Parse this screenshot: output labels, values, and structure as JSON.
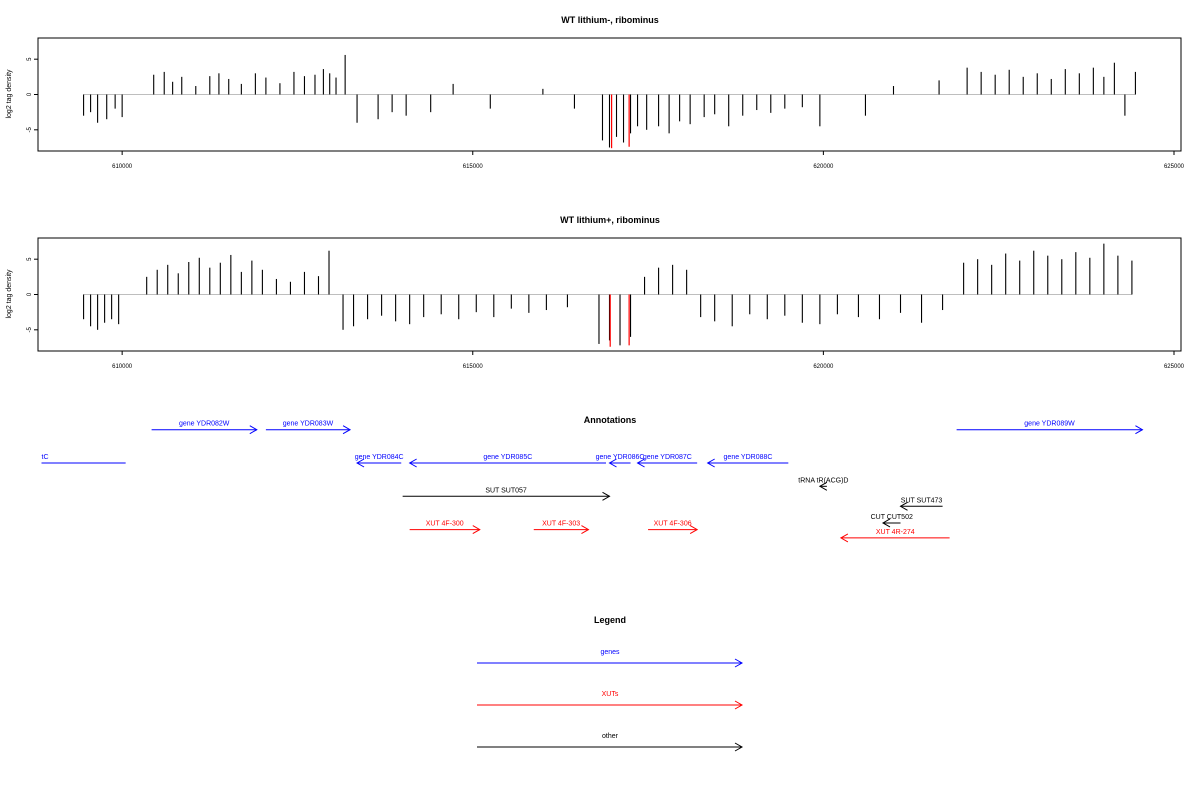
{
  "colors": {
    "gene": "#0000ff",
    "xut": "#ff0000",
    "other": "#000000",
    "bar": "#000000",
    "highlight": "#ff0000",
    "baseline": "#bebebe"
  },
  "chart_data": [
    {
      "type": "bar",
      "title": "WT lithium-, ribominus",
      "ylabel": "log2 tag density",
      "xlim": [
        608800,
        625100
      ],
      "ylim": [
        -8,
        8
      ],
      "x_ticks": [
        610000,
        615000,
        620000,
        625000
      ],
      "x_tick_labels": [
        "610000",
        "615000",
        "620000",
        "625000"
      ],
      "y_ticks": [
        -5,
        0,
        5
      ],
      "y_tick_labels": [
        "-5",
        "0",
        "5"
      ],
      "baseline": 0,
      "x": [
        609450,
        609550,
        609650,
        609780,
        609900,
        610000,
        610450,
        610600,
        610720,
        610850,
        611050,
        611250,
        611380,
        611520,
        611700,
        611900,
        612050,
        612250,
        612450,
        612600,
        612750,
        612870,
        612960,
        613050,
        613180,
        613350,
        613650,
        613850,
        614050,
        614400,
        614720,
        615250,
        616000,
        616450,
        616850,
        616950,
        617050,
        617150,
        617250,
        617350,
        617480,
        617650,
        617800,
        617950,
        618100,
        618300,
        618450,
        618650,
        618850,
        619050,
        619250,
        619450,
        619700,
        619950,
        620600,
        621000,
        621650,
        622050,
        622250,
        622450,
        622650,
        622850,
        623050,
        623250,
        623450,
        623650,
        623850,
        624000,
        624150,
        624300,
        624450
      ],
      "values": [
        -3.0,
        -2.5,
        -4.0,
        -3.5,
        -2.0,
        -3.2,
        2.8,
        3.2,
        1.8,
        2.5,
        1.2,
        2.6,
        3.0,
        2.2,
        1.5,
        3.0,
        2.4,
        1.6,
        3.2,
        2.6,
        2.8,
        3.6,
        3.0,
        2.4,
        5.6,
        -4.0,
        -3.5,
        -2.5,
        -3.0,
        -2.5,
        1.5,
        -2.0,
        0.8,
        -2.0,
        -6.5,
        -7.5,
        -6.0,
        -6.8,
        -5.5,
        -4.5,
        -5.0,
        -4.5,
        -5.5,
        -3.8,
        -4.2,
        -3.2,
        -2.8,
        -4.5,
        -3.0,
        -2.2,
        -2.6,
        -2.0,
        -1.8,
        -4.5,
        -3.0,
        1.2,
        2.0,
        3.8,
        3.2,
        2.8,
        3.5,
        2.5,
        3.0,
        2.2,
        3.6,
        3.0,
        3.8,
        2.5,
        4.5,
        -3.0,
        3.2
      ],
      "highlight_x": [
        616980,
        617230
      ],
      "highlight_values": [
        -7.6,
        -7.4
      ]
    },
    {
      "type": "bar",
      "title": "WT lithium+, ribominus",
      "ylabel": "log2 tag density",
      "xlim": [
        608800,
        625100
      ],
      "ylim": [
        -8,
        8
      ],
      "x_ticks": [
        610000,
        615000,
        620000,
        625000
      ],
      "x_tick_labels": [
        "610000",
        "615000",
        "620000",
        "625000"
      ],
      "y_ticks": [
        -5,
        0,
        5
      ],
      "y_tick_labels": [
        "-5",
        "0",
        "5"
      ],
      "baseline": 0,
      "x": [
        609450,
        609550,
        609650,
        609750,
        609850,
        609950,
        610350,
        610500,
        610650,
        610800,
        610950,
        611100,
        611250,
        611400,
        611550,
        611700,
        611850,
        612000,
        612200,
        612400,
        612600,
        612800,
        612950,
        613150,
        613300,
        613500,
        613700,
        613900,
        614100,
        614300,
        614550,
        614800,
        615050,
        615300,
        615550,
        615800,
        616050,
        616350,
        616800,
        616950,
        617100,
        617250,
        617450,
        617650,
        617850,
        618050,
        618250,
        618450,
        618700,
        618950,
        619200,
        619450,
        619700,
        619950,
        620200,
        620500,
        620800,
        621100,
        621400,
        621700,
        622000,
        622200,
        622400,
        622600,
        622800,
        623000,
        623200,
        623400,
        623600,
        623800,
        624000,
        624200,
        624400
      ],
      "values": [
        -3.5,
        -4.5,
        -5.0,
        -4.0,
        -3.5,
        -4.2,
        2.5,
        3.5,
        4.2,
        3.0,
        4.6,
        5.2,
        3.8,
        4.5,
        5.6,
        3.2,
        4.8,
        3.5,
        2.2,
        1.8,
        3.2,
        2.6,
        6.2,
        -5.0,
        -4.5,
        -3.5,
        -3.0,
        -3.8,
        -4.2,
        -3.2,
        -2.8,
        -3.5,
        -2.5,
        -3.2,
        -2.0,
        -2.6,
        -2.2,
        -1.8,
        -7.0,
        -6.5,
        -7.2,
        -6.0,
        2.5,
        3.8,
        4.2,
        3.5,
        -3.2,
        -3.8,
        -4.5,
        -2.8,
        -3.5,
        -3.0,
        -4.0,
        -4.2,
        -2.8,
        -3.2,
        -3.5,
        -2.6,
        -4.0,
        -2.2,
        4.5,
        5.0,
        4.2,
        5.8,
        4.8,
        6.2,
        5.5,
        5.0,
        6.0,
        5.2,
        7.2,
        5.5,
        4.8
      ],
      "highlight_x": [
        616960,
        617230
      ],
      "highlight_values": [
        -7.4,
        -7.2
      ]
    }
  ],
  "annotations": {
    "title": "Annotations",
    "features": [
      {
        "label": "tC",
        "kind": "gene",
        "start": 608850,
        "end": 610050,
        "strand": "+",
        "row": 0,
        "arrow": false
      },
      {
        "label": "gene YDR082W",
        "kind": "gene",
        "start": 610420,
        "end": 611920,
        "strand": "+",
        "row": -1
      },
      {
        "label": "gene YDR083W",
        "kind": "gene",
        "start": 612050,
        "end": 613250,
        "strand": "+",
        "row": -1
      },
      {
        "label": "gene YDR084C",
        "kind": "gene",
        "start": 613350,
        "end": 613980,
        "strand": "-",
        "row": 0
      },
      {
        "label": "gene YDR085C",
        "kind": "gene",
        "start": 614100,
        "end": 616900,
        "strand": "-",
        "row": 0
      },
      {
        "label": "gene YDR086C",
        "kind": "gene",
        "start": 616950,
        "end": 617250,
        "strand": "-",
        "row": 0
      },
      {
        "label": "gene YDR087C",
        "kind": "gene",
        "start": 617350,
        "end": 618200,
        "strand": "-",
        "row": 0
      },
      {
        "label": "gene YDR088C",
        "kind": "gene",
        "start": 618350,
        "end": 619500,
        "strand": "-",
        "row": 0
      },
      {
        "label": "gene YDR089W",
        "kind": "gene",
        "start": 621900,
        "end": 624550,
        "strand": "+",
        "row": -1
      },
      {
        "label": "SUT SUT057",
        "kind": "other",
        "start": 614000,
        "end": 616950,
        "strand": "+",
        "row": 1
      },
      {
        "label": "tRNA tR(ACG)D",
        "kind": "other",
        "start": 619950,
        "end": 620050,
        "strand": "-",
        "row": 0.7
      },
      {
        "label": "SUT SUT473",
        "kind": "other",
        "start": 621100,
        "end": 621700,
        "strand": "-",
        "row": 1.3
      },
      {
        "label": "CUT CUT502",
        "kind": "other",
        "start": 620850,
        "end": 621100,
        "strand": "-",
        "row": 1.8
      },
      {
        "label": "XUT 4F-300",
        "kind": "xut",
        "start": 614100,
        "end": 615100,
        "strand": "+",
        "row": 2
      },
      {
        "label": "XUT 4F-303",
        "kind": "xut",
        "start": 615870,
        "end": 616650,
        "strand": "+",
        "row": 2
      },
      {
        "label": "XUT 4F-306",
        "kind": "xut",
        "start": 617500,
        "end": 618200,
        "strand": "+",
        "row": 2
      },
      {
        "label": "XUT 4R-274",
        "kind": "xut",
        "start": 620250,
        "end": 621800,
        "strand": "-",
        "row": 2.25
      }
    ]
  },
  "legend": {
    "title": "Legend",
    "items": [
      {
        "label": "genes",
        "kind": "gene"
      },
      {
        "label": "XUTs",
        "kind": "xut"
      },
      {
        "label": "other",
        "kind": "other"
      }
    ]
  }
}
